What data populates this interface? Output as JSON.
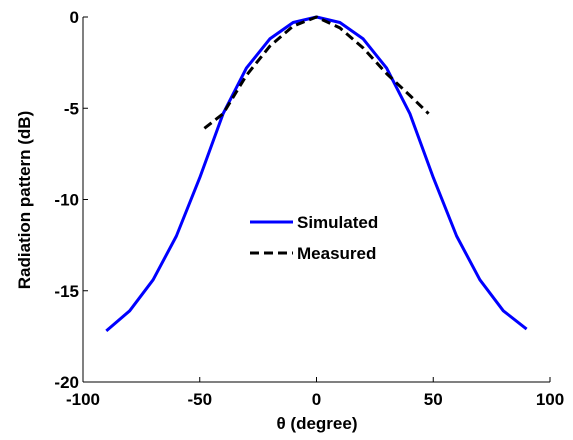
{
  "chart_data": {
    "type": "line",
    "xlabel": "θ (degree)",
    "ylabel": "Radiation pattern (dB)",
    "xlim": [
      -100,
      100
    ],
    "ylim": [
      -20,
      0
    ],
    "xticks": [
      -100,
      -50,
      0,
      50,
      100
    ],
    "yticks": [
      -20,
      -15,
      -10,
      -5,
      0
    ],
    "xtick_labels": [
      "-100",
      "-50",
      "0",
      "50",
      "100"
    ],
    "ytick_labels": [
      "-20",
      "-15",
      "-10",
      "-5",
      "0"
    ],
    "grid": false,
    "legend_position": "center",
    "series": [
      {
        "name": "Simulated",
        "color": "#0000ff",
        "style": "solid",
        "x": [
          -90,
          -80,
          -70,
          -60,
          -50,
          -40,
          -30,
          -20,
          -10,
          0,
          10,
          20,
          30,
          40,
          50,
          60,
          70,
          80,
          90
        ],
        "y": [
          -17.2,
          -16.1,
          -14.4,
          -12.0,
          -8.8,
          -5.3,
          -2.8,
          -1.2,
          -0.3,
          0.0,
          -0.3,
          -1.2,
          -2.8,
          -5.3,
          -8.8,
          -12.0,
          -14.4,
          -16.1,
          -17.1
        ]
      },
      {
        "name": "Measured",
        "color": "#000000",
        "style": "dashed",
        "x": [
          -48,
          -40,
          -30,
          -20,
          -10,
          0,
          10,
          20,
          30,
          40,
          48
        ],
        "y": [
          -6.1,
          -5.3,
          -3.2,
          -1.6,
          -0.5,
          0.0,
          -0.6,
          -1.7,
          -3.1,
          -4.3,
          -5.3
        ]
      }
    ]
  }
}
